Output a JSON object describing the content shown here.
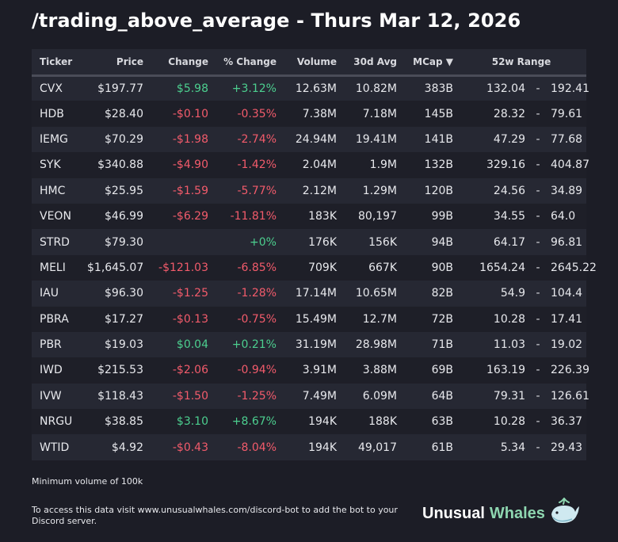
{
  "title": "/trading_above_average - Thurs Mar 12, 2026",
  "columns": {
    "ticker": "Ticker",
    "price": "Price",
    "change": "Change",
    "pct_change": "% Change",
    "volume": "Volume",
    "avg30": "30d Avg",
    "mcap": "MCap ▼",
    "range": "52w Range"
  },
  "rows": [
    {
      "ticker": "CVX",
      "price": "$197.77",
      "change": "$5.98",
      "pct": "+3.12%",
      "volume": "12.63M",
      "avg": "10.82M",
      "mcap": "383B",
      "low": "132.04",
      "sep": "-",
      "high": "192.41",
      "dir": "pos"
    },
    {
      "ticker": "HDB",
      "price": "$28.40",
      "change": "-$0.10",
      "pct": "-0.35%",
      "volume": "7.38M",
      "avg": "7.18M",
      "mcap": "145B",
      "low": "28.32",
      "sep": "-",
      "high": "79.61",
      "dir": "neg"
    },
    {
      "ticker": "IEMG",
      "price": "$70.29",
      "change": "-$1.98",
      "pct": "-2.74%",
      "volume": "24.94M",
      "avg": "19.41M",
      "mcap": "141B",
      "low": "47.29",
      "sep": "-",
      "high": "77.68",
      "dir": "neg"
    },
    {
      "ticker": "SYK",
      "price": "$340.88",
      "change": "-$4.90",
      "pct": "-1.42%",
      "volume": "2.04M",
      "avg": "1.9M",
      "mcap": "132B",
      "low": "329.16",
      "sep": "-",
      "high": "404.87",
      "dir": "neg"
    },
    {
      "ticker": "HMC",
      "price": "$25.95",
      "change": "-$1.59",
      "pct": "-5.77%",
      "volume": "2.12M",
      "avg": "1.29M",
      "mcap": "120B",
      "low": "24.56",
      "sep": "-",
      "high": "34.89",
      "dir": "neg"
    },
    {
      "ticker": "VEON",
      "price": "$46.99",
      "change": "-$6.29",
      "pct": "-11.81%",
      "volume": "183K",
      "avg": "80,197",
      "mcap": "99B",
      "low": "34.55",
      "sep": "-",
      "high": "64.0",
      "dir": "neg"
    },
    {
      "ticker": "STRD",
      "price": "$79.30",
      "change": "",
      "pct": "+0%",
      "volume": "176K",
      "avg": "156K",
      "mcap": "94B",
      "low": "64.17",
      "sep": "-",
      "high": "96.81",
      "dir": "pos"
    },
    {
      "ticker": "MELI",
      "price": "$1,645.07",
      "change": "-$121.03",
      "pct": "-6.85%",
      "volume": "709K",
      "avg": "667K",
      "mcap": "90B",
      "low": "1654.24",
      "sep": "-",
      "high": "2645.22",
      "dir": "neg"
    },
    {
      "ticker": "IAU",
      "price": "$96.30",
      "change": "-$1.25",
      "pct": "-1.28%",
      "volume": "17.14M",
      "avg": "10.65M",
      "mcap": "82B",
      "low": "54.9",
      "sep": "-",
      "high": "104.4",
      "dir": "neg"
    },
    {
      "ticker": "PBRA",
      "price": "$17.27",
      "change": "-$0.13",
      "pct": "-0.75%",
      "volume": "15.49M",
      "avg": "12.7M",
      "mcap": "72B",
      "low": "10.28",
      "sep": "-",
      "high": "17.41",
      "dir": "neg"
    },
    {
      "ticker": "PBR",
      "price": "$19.03",
      "change": "$0.04",
      "pct": "+0.21%",
      "volume": "31.19M",
      "avg": "28.98M",
      "mcap": "71B",
      "low": "11.03",
      "sep": "-",
      "high": "19.02",
      "dir": "pos"
    },
    {
      "ticker": "IWD",
      "price": "$215.53",
      "change": "-$2.06",
      "pct": "-0.94%",
      "volume": "3.91M",
      "avg": "3.88M",
      "mcap": "69B",
      "low": "163.19",
      "sep": "-",
      "high": "226.39",
      "dir": "neg"
    },
    {
      "ticker": "IVW",
      "price": "$118.43",
      "change": "-$1.50",
      "pct": "-1.25%",
      "volume": "7.49M",
      "avg": "6.09M",
      "mcap": "64B",
      "low": "79.31",
      "sep": "-",
      "high": "126.61",
      "dir": "neg"
    },
    {
      "ticker": "NRGU",
      "price": "$38.85",
      "change": "$3.10",
      "pct": "+8.67%",
      "volume": "194K",
      "avg": "188K",
      "mcap": "63B",
      "low": "10.28",
      "sep": "-",
      "high": "36.37",
      "dir": "pos"
    },
    {
      "ticker": "WTID",
      "price": "$4.92",
      "change": "-$0.43",
      "pct": "-8.04%",
      "volume": "194K",
      "avg": "49,017",
      "mcap": "61B",
      "low": "5.34",
      "sep": "-",
      "high": "29.43",
      "dir": "neg"
    }
  ],
  "footer": {
    "note": "Minimum volume of 100k",
    "access": "To access this data visit www.unusualwhales.com/discord-bot to add the bot to your Discord server."
  },
  "brand": {
    "word1": "Unusual",
    "word2": "Whales",
    "icon": "whale-icon"
  },
  "colors": {
    "positive": "#4ccf8f",
    "negative": "#f25b6b",
    "background": "#1c1d26",
    "brand_accent": "#8ed6b0"
  }
}
